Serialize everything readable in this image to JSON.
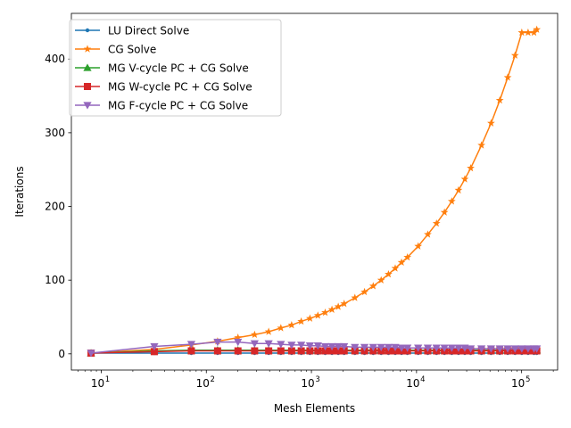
{
  "chart_data": {
    "type": "line",
    "xlabel": "Mesh Elements",
    "ylabel": "Iterations",
    "xscale": "log",
    "xlim": [
      5.2,
      220000
    ],
    "ylim": [
      -22,
      462
    ],
    "yticks": [
      0,
      100,
      200,
      300,
      400
    ],
    "xticks_exp": [
      1,
      2,
      3,
      4,
      5
    ],
    "grid": false,
    "legend_position": "upper-left",
    "series": [
      {
        "name": "LU Direct Solve",
        "color": "#1f77b4",
        "marker": "point",
        "x": [
          8,
          32,
          72,
          128,
          200,
          288,
          392,
          512,
          648,
          800,
          968,
          1152,
          1352,
          1568,
          1800,
          2048,
          2592,
          3200,
          3872,
          4608,
          5408,
          6272,
          7200,
          8192,
          10368,
          12800,
          15488,
          18432,
          21632,
          25088,
          28800,
          32768,
          41472,
          51200,
          61952,
          73728,
          86528,
          100352,
          115200,
          131072,
          139392
        ],
        "values": [
          1,
          1,
          1,
          1,
          1,
          1,
          1,
          1,
          1,
          1,
          1,
          1,
          1,
          1,
          1,
          1,
          1,
          1,
          1,
          1,
          1,
          1,
          1,
          1,
          1,
          1,
          1,
          1,
          1,
          1,
          1,
          1,
          1,
          1,
          1,
          1,
          1,
          1,
          1,
          1,
          1
        ]
      },
      {
        "name": "CG Solve",
        "color": "#ff7f0e",
        "marker": "star",
        "x": [
          8,
          32,
          72,
          128,
          200,
          288,
          392,
          512,
          648,
          800,
          968,
          1152,
          1352,
          1568,
          1800,
          2048,
          2592,
          3200,
          3872,
          4608,
          5408,
          6272,
          7200,
          8192,
          10368,
          12800,
          15488,
          18432,
          21632,
          25088,
          28800,
          32768,
          41472,
          51200,
          61952,
          73728,
          86528,
          100352,
          115200,
          131072,
          139392
        ],
        "values": [
          1,
          6,
          12,
          17,
          22,
          26,
          30,
          35,
          39,
          44,
          48,
          52,
          56,
          60,
          64,
          68,
          76,
          84,
          92,
          100,
          108,
          116,
          124,
          131,
          146,
          162,
          177,
          192,
          207,
          222,
          237,
          252,
          283,
          313,
          344,
          375,
          405,
          436,
          436,
          436,
          440
        ]
      },
      {
        "name": "MG V-cycle PC + CG Solve",
        "color": "#2ca02c",
        "marker": "triangle-up",
        "x": [
          8,
          32,
          72,
          128,
          200,
          288,
          392,
          512,
          648,
          800,
          968,
          1152,
          1352,
          1568,
          1800,
          2048,
          2592,
          3200,
          3872,
          4608,
          5408,
          6272,
          7200,
          8192,
          10368,
          12800,
          15488,
          18432,
          21632,
          25088,
          28800,
          32768,
          41472,
          51200,
          61952,
          73728,
          86528,
          100352,
          115200,
          131072,
          139392
        ],
        "values": [
          1,
          4,
          5,
          5,
          5,
          5,
          5,
          5,
          5,
          5,
          5,
          5,
          5,
          5,
          5,
          5,
          5,
          5,
          5,
          5,
          5,
          5,
          5,
          5,
          5,
          5,
          5,
          5,
          5,
          5,
          5,
          5,
          5,
          5,
          5,
          5,
          5,
          5,
          5,
          5,
          5
        ]
      },
      {
        "name": "MG W-cycle PC + CG Solve",
        "color": "#d62728",
        "marker": "square",
        "x": [
          8,
          32,
          72,
          128,
          200,
          288,
          392,
          512,
          648,
          800,
          968,
          1152,
          1352,
          1568,
          1800,
          2048,
          2592,
          3200,
          3872,
          4608,
          5408,
          6272,
          7200,
          8192,
          10368,
          12800,
          15488,
          18432,
          21632,
          25088,
          28800,
          32768,
          41472,
          51200,
          61952,
          73728,
          86528,
          100352,
          115200,
          131072,
          139392
        ],
        "values": [
          1,
          3,
          4,
          4,
          4,
          4,
          4,
          4,
          4,
          4,
          4,
          4,
          4,
          4,
          4,
          4,
          4,
          4,
          4,
          4,
          4,
          4,
          4,
          4,
          4,
          4,
          4,
          4,
          4,
          4,
          4,
          4,
          4,
          4,
          4,
          4,
          4,
          4,
          4,
          4,
          4
        ]
      },
      {
        "name": "MG F-cycle PC + CG Solve",
        "color": "#9467bd",
        "marker": "triangle-down",
        "x": [
          8,
          32,
          72,
          128,
          200,
          288,
          392,
          512,
          648,
          800,
          968,
          1152,
          1352,
          1568,
          1800,
          2048,
          2592,
          3200,
          3872,
          4608,
          5408,
          6272,
          7200,
          8192,
          10368,
          12800,
          15488,
          18432,
          21632,
          25088,
          28800,
          32768,
          41472,
          51200,
          61952,
          73728,
          86528,
          100352,
          115200,
          131072,
          139392
        ],
        "values": [
          1,
          10,
          13,
          16,
          16,
          14,
          14,
          13,
          12,
          12,
          11,
          11,
          10,
          10,
          10,
          10,
          9,
          9,
          9,
          9,
          9,
          9,
          8,
          8,
          8,
          8,
          8,
          8,
          8,
          8,
          8,
          7,
          7,
          7,
          7,
          7,
          7,
          7,
          7,
          7,
          7
        ]
      }
    ]
  }
}
